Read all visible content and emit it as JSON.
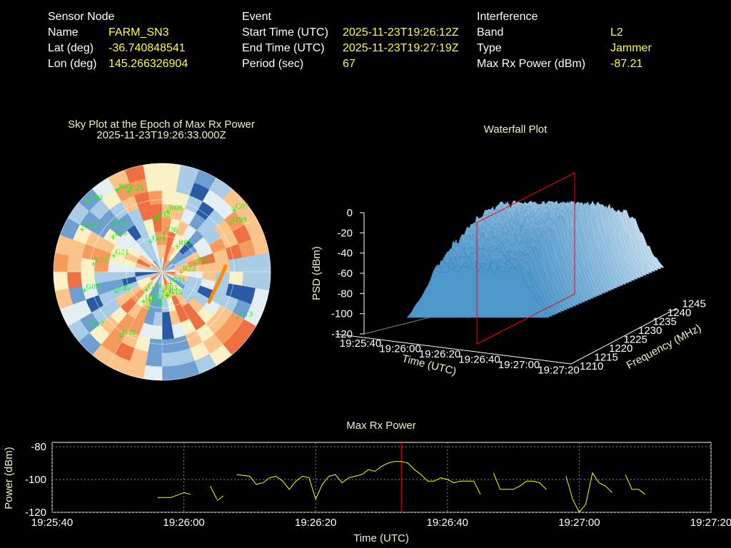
{
  "info": {
    "sensor": {
      "heading": "Sensor Node",
      "rows": [
        {
          "label": "Name",
          "value": "FARM_SN3"
        },
        {
          "label": "Lat (deg)",
          "value": "-36.740848541"
        },
        {
          "label": "Lon (deg)",
          "value": "145.266326904"
        }
      ]
    },
    "event": {
      "heading": "Event",
      "rows": [
        {
          "label": "Start Time (UTC)",
          "value": "2025-11-23T19:26:12Z"
        },
        {
          "label": "End Time (UTC)",
          "value": "2025-11-23T19:27:19Z"
        },
        {
          "label": "Period (sec)",
          "value": "67"
        }
      ]
    },
    "interference": {
      "heading": "Interference",
      "rows": [
        {
          "label": "Band",
          "value": "L2"
        },
        {
          "label": "Type",
          "value": "Jammer"
        },
        {
          "label": "Max Rx Power (dBm)",
          "value": "-87.21"
        }
      ]
    }
  },
  "colors": {
    "background": "#000000",
    "label_text": "#ffffff",
    "value_text": "#ffff33",
    "chart_text": "#f0f0c8",
    "satellite_label": "#00ff00",
    "power_line": "#ffff00",
    "marker": "#ff0000",
    "track": "#ff8c00"
  },
  "chart_data": [
    {
      "type": "polar",
      "title": "Sky Plot at the Epoch of Max Rx Power",
      "subtitle": "2025-11-23T19:26:33.000Z",
      "satellites": [
        {
          "id": "R22"
        },
        {
          "id": "I18"
        },
        {
          "id": "G11"
        },
        {
          "id": "J02"
        },
        {
          "id": "G30"
        },
        {
          "id": "E36"
        },
        {
          "id": "R17"
        },
        {
          "id": "G23"
        },
        {
          "id": "C07"
        },
        {
          "id": "R01"
        },
        {
          "id": "E34"
        },
        {
          "id": "G14"
        },
        {
          "id": "C25"
        },
        {
          "id": "I199"
        },
        {
          "id": "E03"
        },
        {
          "id": "R08"
        },
        {
          "id": "C44"
        },
        {
          "id": "C45"
        },
        {
          "id": "G12"
        },
        {
          "id": "G07"
        },
        {
          "id": "R12"
        },
        {
          "id": "R02"
        },
        {
          "id": "G15"
        },
        {
          "id": "E21"
        },
        {
          "id": "G21"
        },
        {
          "id": "E33"
        },
        {
          "id": "E26"
        },
        {
          "id": "C13"
        },
        {
          "id": "G06"
        },
        {
          "id": "E14"
        }
      ]
    },
    {
      "type": "surface",
      "title": "Waterfall Plot",
      "zlabel": "PSD (dBm)",
      "xlabel": "Time (UTC)",
      "ylabel": "Frequency (MHz)",
      "zticks": [
        "0",
        "-20",
        "-40",
        "-60",
        "-80",
        "-100",
        "-120"
      ],
      "xticks": [
        "19:25:40",
        "19:26:00",
        "19:26:20",
        "19:26:40",
        "19:27:00",
        "19:27:20"
      ],
      "yticks": [
        "1210",
        "1215",
        "1220",
        "1225",
        "1230",
        "1235",
        "1240",
        "1245"
      ],
      "zlim": [
        -120,
        0
      ],
      "ylim": [
        1210,
        1245
      ],
      "marker_time": "19:26:33"
    },
    {
      "type": "line",
      "title": "Max Rx Power",
      "xlabel": "Time (UTC)",
      "ylabel": "Power (dBm)",
      "ylim": [
        -120,
        -80
      ],
      "yticks": [
        {
          "value": -80,
          "label": "-80"
        },
        {
          "value": -100,
          "label": "-100"
        },
        {
          "value": -120,
          "label": "-120"
        }
      ],
      "xlim": [
        0,
        100
      ],
      "xticks": [
        {
          "value": 0,
          "label": "19:25:40"
        },
        {
          "value": 20,
          "label": "19:26:00"
        },
        {
          "value": 40,
          "label": "19:26:20"
        },
        {
          "value": 60,
          "label": "19:26:40"
        },
        {
          "value": 80,
          "label": "19:27:00"
        },
        {
          "value": 100,
          "label": "19:27:20"
        }
      ],
      "marker_x": 53,
      "grid": true,
      "segments": [
        [
          [
            16,
            -111
          ],
          [
            18,
            -111
          ],
          [
            20,
            -108
          ],
          [
            21,
            -109
          ]
        ],
        [
          [
            24,
            -104
          ],
          [
            25,
            -112
          ]
        ],
        [
          [
            25,
            -113
          ],
          [
            26,
            -110
          ]
        ],
        [
          [
            28,
            -97
          ],
          [
            30,
            -98
          ],
          [
            31,
            -103
          ],
          [
            32,
            -102
          ],
          [
            33,
            -99
          ],
          [
            34,
            -98
          ],
          [
            35,
            -101
          ],
          [
            36,
            -106
          ],
          [
            37,
            -101
          ],
          [
            38,
            -98
          ],
          [
            39,
            -99
          ],
          [
            40,
            -112
          ],
          [
            41,
            -103
          ],
          [
            42,
            -98
          ],
          [
            43,
            -97
          ],
          [
            44,
            -102
          ],
          [
            45,
            -99
          ],
          [
            46,
            -98
          ],
          [
            47,
            -97
          ],
          [
            48,
            -94
          ],
          [
            49,
            -95
          ],
          [
            50,
            -92
          ],
          [
            51,
            -90
          ],
          [
            52,
            -89
          ],
          [
            53,
            -89
          ],
          [
            54,
            -90
          ],
          [
            55,
            -94
          ],
          [
            56,
            -97
          ],
          [
            57,
            -101
          ],
          [
            58,
            -101
          ],
          [
            59,
            -99
          ],
          [
            60,
            -100
          ],
          [
            61,
            -102
          ],
          [
            62,
            -101
          ],
          [
            63,
            -101
          ],
          [
            64,
            -101
          ],
          [
            65,
            -109
          ]
        ],
        [
          [
            67,
            -96
          ],
          [
            68,
            -106
          ],
          [
            69,
            -106
          ],
          [
            70,
            -106
          ],
          [
            71,
            -104
          ],
          [
            72,
            -101
          ],
          [
            73,
            -101
          ],
          [
            74,
            -102
          ],
          [
            75,
            -106
          ]
        ],
        [
          [
            78,
            -98
          ],
          [
            79,
            -112
          ],
          [
            80,
            -122
          ],
          [
            81,
            -115
          ],
          [
            82,
            -96
          ],
          [
            83,
            -102
          ],
          [
            84,
            -104
          ],
          [
            85,
            -108
          ]
        ],
        [
          [
            87,
            -97
          ],
          [
            88,
            -106
          ],
          [
            89,
            -106
          ],
          [
            90,
            -109
          ]
        ]
      ]
    }
  ]
}
